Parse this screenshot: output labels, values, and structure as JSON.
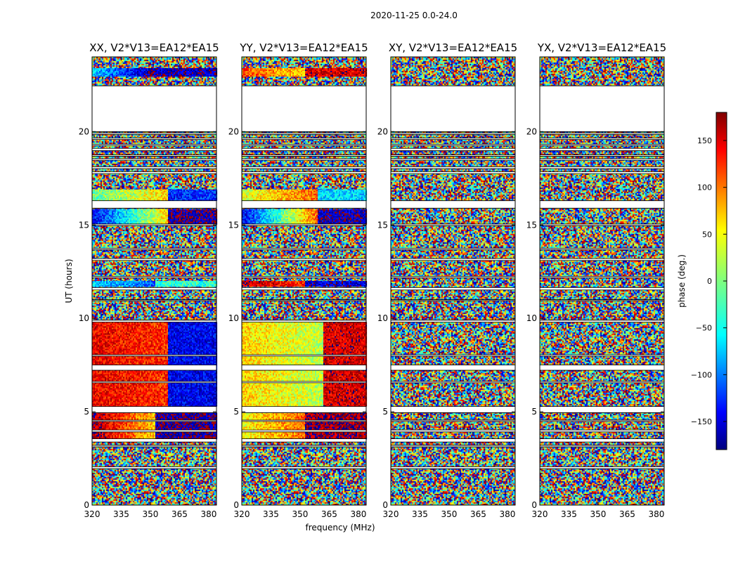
{
  "chart_data": {
    "type": "heatmap",
    "suptitle": "2020-11-25 0.0-24.0",
    "xlabel": "frequency (MHz)",
    "ylabel": "UT (hours)",
    "xlim": [
      320,
      384
    ],
    "ylim": [
      0,
      24
    ],
    "xticks": [
      320,
      335,
      350,
      365,
      380
    ],
    "yticks": [
      0,
      5,
      10,
      15,
      20
    ],
    "colorbar": {
      "label": "phase (deg.)",
      "range": [
        -180,
        180
      ],
      "ticks": [
        150,
        100,
        50,
        0,
        -50,
        -100,
        -150
      ],
      "colormap": "jet"
    },
    "missing_ut_ranges": [
      [
        22.45,
        20.0
      ],
      [
        19.93,
        19.85
      ],
      [
        19.65,
        19.58
      ],
      [
        19.32,
        19.25
      ],
      [
        19.1,
        18.98
      ],
      [
        18.75,
        18.68
      ],
      [
        18.55,
        18.47
      ],
      [
        18.12,
        18.02
      ],
      [
        17.85,
        17.75
      ],
      [
        16.3,
        15.9
      ],
      [
        15.05,
        14.97
      ],
      [
        13.75,
        13.68
      ],
      [
        13.2,
        13.1
      ],
      [
        12.25,
        12.18
      ],
      [
        11.65,
        11.52
      ],
      [
        11.0,
        10.95
      ],
      [
        9.9,
        9.8
      ],
      [
        8.05,
        7.98
      ],
      [
        7.5,
        7.22
      ],
      [
        6.62,
        6.55
      ],
      [
        5.28,
        4.95
      ],
      [
        4.55,
        4.48
      ],
      [
        4.02,
        3.92
      ],
      [
        3.55,
        3.38
      ],
      [
        3.2,
        3.12
      ],
      [
        2.05,
        1.95
      ]
    ],
    "panels": [
      {
        "title": "XX, V2*V13=EA12*EA15",
        "structured_bands": [
          {
            "ut": [
              23.4,
              23.0
            ],
            "phase": [
              -60,
              -170,
              -160
            ],
            "split": 0.5
          },
          {
            "ut": [
              16.9,
              16.35
            ],
            "phase": [
              -10,
              60,
              -120
            ],
            "split": 0.6
          },
          {
            "ut": [
              15.85,
              15.05
            ],
            "phase": [
              -140,
              60,
              -170
            ],
            "split": 0.6
          },
          {
            "ut": [
              12.0,
              11.75
            ],
            "phase": [
              -60,
              -100,
              -30
            ],
            "split": 0.5
          },
          {
            "ut": [
              9.8,
              5.3
            ],
            "phase": [
              140,
              120,
              -140
            ],
            "split": 0.6
          },
          {
            "ut": [
              4.95,
              3.55
            ],
            "phase": [
              170,
              60,
              -170
            ],
            "split": 0.5
          }
        ]
      },
      {
        "title": "YY, V2*V13=EA12*EA15",
        "structured_bands": [
          {
            "ut": [
              23.4,
              23.0
            ],
            "phase": [
              110,
              60,
              150
            ],
            "split": 0.5
          },
          {
            "ut": [
              16.9,
              16.35
            ],
            "phase": [
              30,
              100,
              -60
            ],
            "split": 0.6
          },
          {
            "ut": [
              15.85,
              15.05
            ],
            "phase": [
              -140,
              100,
              -160
            ],
            "split": 0.6
          },
          {
            "ut": [
              12.0,
              11.75
            ],
            "phase": [
              160,
              120,
              -150
            ],
            "split": 0.5
          },
          {
            "ut": [
              9.8,
              5.3
            ],
            "phase": [
              60,
              20,
              150
            ],
            "split": 0.65
          },
          {
            "ut": [
              4.95,
              3.55
            ],
            "phase": [
              40,
              100,
              170
            ],
            "split": 0.5
          }
        ]
      },
      {
        "title": "XY, V2*V13=EA12*EA15",
        "structured_bands": []
      },
      {
        "title": "YX, V2*V13=EA12*EA15",
        "structured_bands": []
      }
    ]
  }
}
